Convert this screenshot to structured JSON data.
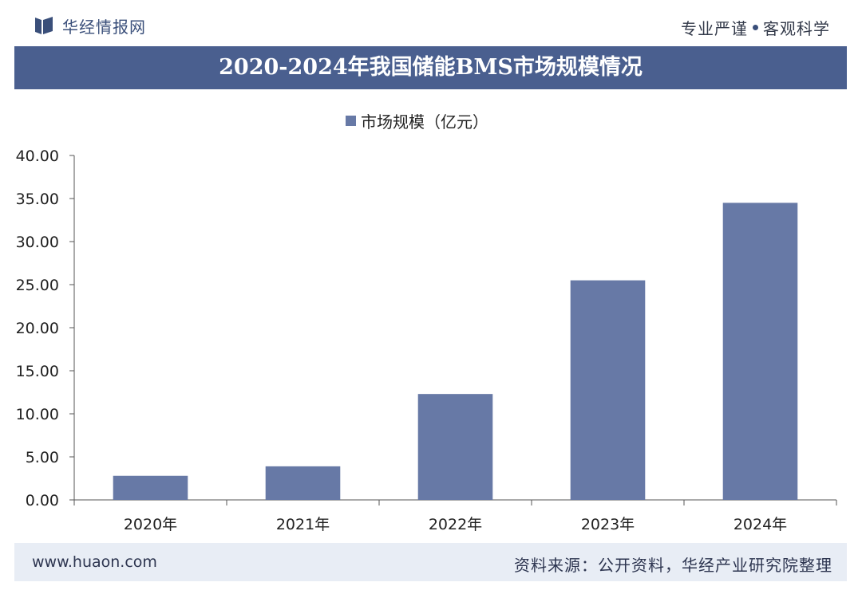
{
  "header": {
    "logo_text": "华经情报网",
    "slogan_left": "专业严谨",
    "slogan_right": "客观科学"
  },
  "chart_data": {
    "type": "bar",
    "title": "2020-2024年我国储能BMS市场规模情况",
    "categories": [
      "2020年",
      "2021年",
      "2022年",
      "2023年",
      "2024年"
    ],
    "series": [
      {
        "name": "市场规模（亿元）",
        "values": [
          2.8,
          3.9,
          12.3,
          25.5,
          34.5
        ]
      }
    ],
    "ylim": [
      0,
      40
    ],
    "yticks": [
      "0.00",
      "5.00",
      "10.00",
      "15.00",
      "20.00",
      "25.00",
      "30.00",
      "35.00",
      "40.00"
    ],
    "legend_position": "top-center",
    "grid": false,
    "bar_color": "#6779a6"
  },
  "footer": {
    "website": "www.huaon.com",
    "source": "资料来源：公开资料，华经产业研究院整理"
  }
}
